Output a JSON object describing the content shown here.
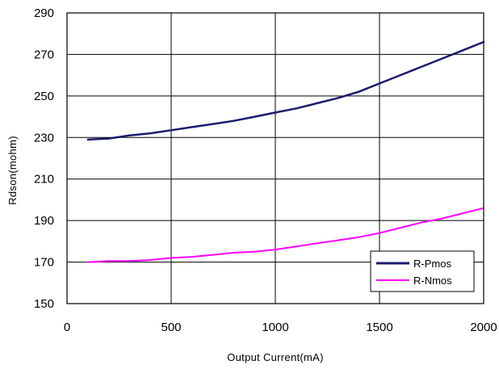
{
  "chart_data": {
    "type": "line",
    "xlabel": "Output Current(mA)",
    "ylabel": "Rdson(mohm)",
    "xlim": [
      0,
      2000
    ],
    "ylim": [
      150,
      290
    ],
    "xticks": [
      0,
      500,
      1000,
      1500,
      2000
    ],
    "yticks": [
      150,
      170,
      190,
      210,
      230,
      250,
      270,
      290
    ],
    "grid": true,
    "legend_position": "bottom-right",
    "series": [
      {
        "name": "R-Pmos",
        "color": "#1a1a6e",
        "x": [
          100,
          200,
          300,
          400,
          500,
          600,
          700,
          800,
          900,
          1000,
          1100,
          1200,
          1300,
          1400,
          1500,
          1600,
          1700,
          1800,
          1900,
          2000
        ],
        "y": [
          229,
          229.5,
          231,
          232,
          233.5,
          235,
          236.5,
          238,
          240,
          242,
          244,
          246.5,
          249,
          252,
          256,
          260,
          264,
          268,
          272,
          276
        ]
      },
      {
        "name": "R-Nmos",
        "color": "#ff00ff",
        "x": [
          100,
          200,
          300,
          400,
          500,
          600,
          700,
          800,
          900,
          1000,
          1100,
          1200,
          1300,
          1400,
          1500,
          1600,
          1700,
          1800,
          1900,
          2000
        ],
        "y": [
          170,
          170.5,
          170.5,
          171,
          172,
          172.5,
          173.5,
          174.5,
          175,
          176,
          177.5,
          179,
          180.5,
          182,
          184,
          186.5,
          189,
          191,
          193.5,
          196
        ]
      }
    ]
  }
}
